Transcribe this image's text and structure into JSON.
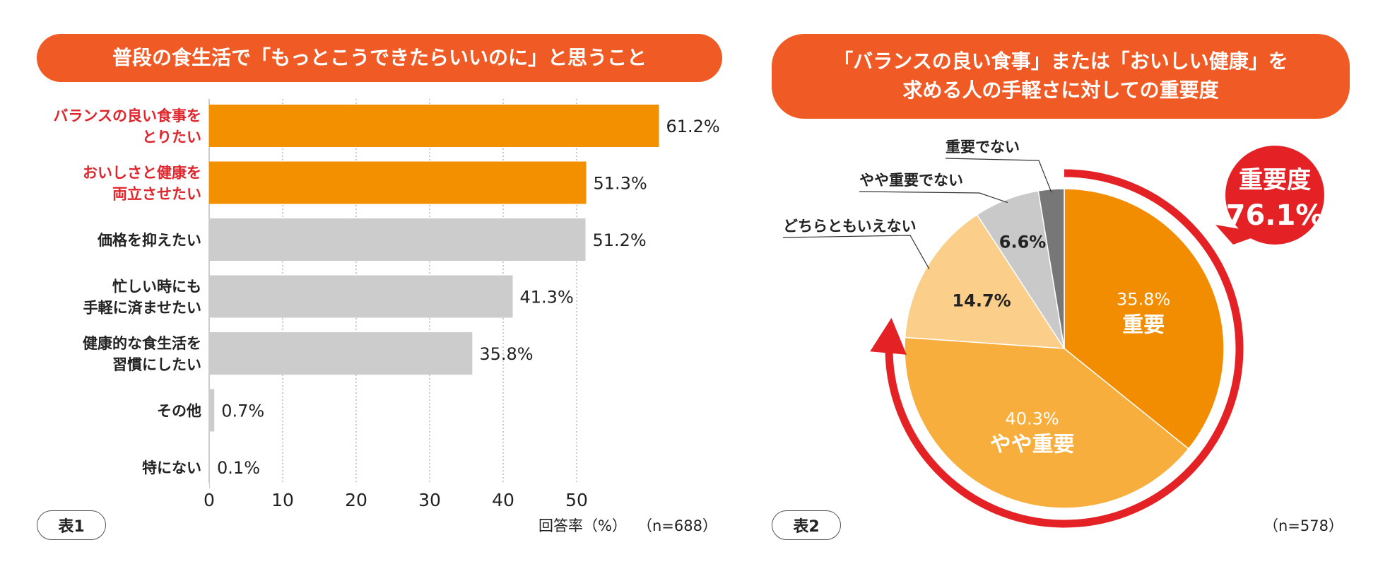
{
  "chart1": {
    "title": "普段の食生活で「もっとこうできたらいいのに」と思うこと",
    "tag": "表1",
    "xlabel": "回答率（%）",
    "n_label": "（n=688）",
    "colors": {
      "highlight": "#f39000",
      "normal": "#cccccc",
      "highlight_text": "#e0262d"
    }
  },
  "chart2": {
    "title_line1": "「バランスの良い食事」または「おいしい健康」を",
    "title_line2": "求める人の手軽さに対しての重要度",
    "tag": "表2",
    "n_label": "（n=578）",
    "badge_line1": "重要度",
    "badge_line2": "76.1%",
    "colors": {
      "arrow": "#e42225",
      "badge": "#e42225"
    }
  },
  "chart_data": [
    {
      "type": "bar",
      "orientation": "horizontal",
      "title": "普段の食生活で「もっとこうできたらいいのに」と思うこと",
      "xlabel": "回答率（%）",
      "xlim": [
        0,
        60
      ],
      "xticks": [
        0,
        10,
        20,
        30,
        40,
        50
      ],
      "categories": [
        [
          "バランスの良い食事を",
          "とりたい"
        ],
        [
          "おいしさと健康を",
          "両立させたい"
        ],
        [
          "価格を抑えたい"
        ],
        [
          "忙しい時にも",
          "手軽に済ませたい"
        ],
        [
          "健康的な食生活を",
          "習慣にしたい"
        ],
        [
          "その他"
        ],
        [
          "特にない"
        ]
      ],
      "values": [
        61.2,
        51.3,
        51.2,
        41.3,
        35.8,
        0.7,
        0.1
      ],
      "value_labels": [
        "61.2%",
        "51.3%",
        "51.2%",
        "41.3%",
        "35.8%",
        "0.7%",
        "0.1%"
      ],
      "highlight": [
        true,
        true,
        false,
        false,
        false,
        false,
        false
      ]
    },
    {
      "type": "pie",
      "title": "「バランスの良い食事」または「おいしい健康」を求める人の手軽さに対しての重要度",
      "slices": [
        {
          "name": "重要",
          "value": 35.8,
          "label": "35.8%",
          "color": "#f28c00",
          "text_color": "#ffffff"
        },
        {
          "name": "やや重要",
          "value": 40.3,
          "label": "40.3%",
          "color": "#f8ae3c",
          "text_color": "#ffffff"
        },
        {
          "name": "どちらともいえない",
          "value": 14.7,
          "label": "14.7%",
          "color": "#fbcf8a",
          "text_color": "#222222"
        },
        {
          "name": "やや重要でない",
          "value": 6.6,
          "label": "6.6%",
          "color": "#c9c9c9",
          "text_color": "#222222"
        },
        {
          "name": "重要でない",
          "value": 2.6,
          "label": "",
          "color": "#777777",
          "text_color": "#222222"
        }
      ]
    }
  ]
}
